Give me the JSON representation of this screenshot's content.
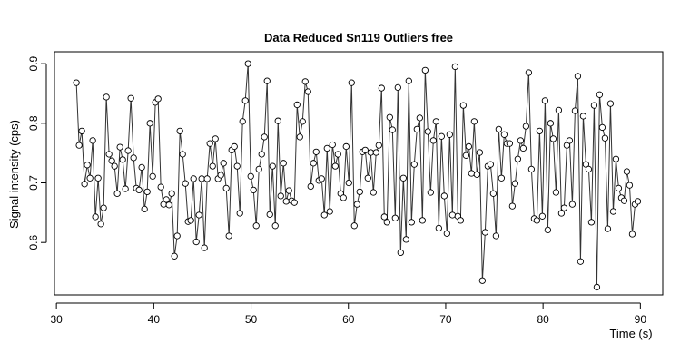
{
  "chart_data": {
    "type": "line",
    "markers": true,
    "title": "Data Reduced Sn119 Outliers free",
    "xlabel": "Time (s)",
    "ylabel": "Signal intensity (cps)",
    "color": "#333333",
    "xlim": [
      29.8,
      92.3
    ],
    "ylim": [
      0.512,
      0.92
    ],
    "xticks": [
      30,
      40,
      50,
      60,
      70,
      80,
      90
    ],
    "yticks": [
      0.6,
      0.7,
      0.8,
      0.9
    ],
    "x": [
      32.05,
      32.33,
      32.61,
      32.89,
      33.17,
      33.45,
      33.73,
      34.01,
      34.29,
      34.57,
      34.85,
      35.13,
      35.41,
      35.69,
      35.97,
      36.25,
      36.53,
      36.81,
      37.09,
      37.37,
      37.65,
      37.93,
      38.21,
      38.49,
      38.77,
      39.05,
      39.33,
      39.61,
      39.89,
      40.17,
      40.45,
      40.73,
      41.01,
      41.29,
      41.57,
      41.85,
      42.13,
      42.41,
      42.69,
      42.97,
      43.25,
      43.53,
      43.81,
      44.09,
      44.37,
      44.65,
      44.93,
      45.21,
      45.49,
      45.77,
      46.05,
      46.33,
      46.61,
      46.89,
      47.17,
      47.45,
      47.73,
      48.01,
      48.29,
      48.57,
      48.85,
      49.13,
      49.41,
      49.69,
      49.97,
      50.25,
      50.53,
      50.81,
      51.09,
      51.37,
      51.65,
      51.93,
      52.21,
      52.49,
      52.77,
      53.05,
      53.33,
      53.61,
      53.89,
      54.17,
      54.45,
      54.73,
      55.01,
      55.29,
      55.57,
      55.85,
      56.13,
      56.41,
      56.69,
      56.97,
      57.25,
      57.53,
      57.81,
      58.09,
      58.37,
      58.65,
      58.93,
      59.21,
      59.49,
      59.77,
      60.05,
      60.33,
      60.61,
      60.89,
      61.17,
      61.45,
      61.73,
      62.01,
      62.29,
      62.57,
      62.85,
      63.13,
      63.41,
      63.69,
      63.97,
      64.25,
      64.53,
      64.81,
      65.09,
      65.37,
      65.65,
      65.93,
      66.21,
      66.49,
      66.77,
      67.05,
      67.33,
      67.61,
      67.89,
      68.17,
      68.45,
      68.73,
      69.01,
      69.29,
      69.57,
      69.85,
      70.13,
      70.41,
      70.69,
      70.97,
      71.25,
      71.53,
      71.81,
      72.09,
      72.37,
      72.65,
      72.93,
      73.21,
      73.49,
      73.77,
      74.05,
      74.33,
      74.61,
      74.89,
      75.17,
      75.45,
      75.73,
      76.01,
      76.29,
      76.57,
      76.85,
      77.13,
      77.41,
      77.69,
      77.97,
      78.25,
      78.53,
      78.81,
      79.09,
      79.37,
      79.65,
      79.93,
      80.21,
      80.49,
      80.77,
      81.05,
      81.33,
      81.61,
      81.89,
      82.17,
      82.45,
      82.73,
      83.01,
      83.29,
      83.57,
      83.85,
      84.13,
      84.41,
      84.69,
      84.97,
      85.25,
      85.53,
      85.81,
      86.09,
      86.37,
      86.65,
      86.93,
      87.21,
      87.49,
      87.77,
      88.05,
      88.33,
      88.61,
      88.89,
      89.17,
      89.45,
      89.73
    ],
    "values": [
      0.868,
      0.763,
      0.787,
      0.698,
      0.73,
      0.708,
      0.771,
      0.643,
      0.708,
      0.631,
      0.658,
      0.844,
      0.748,
      0.737,
      0.728,
      0.682,
      0.76,
      0.739,
      0.69,
      0.754,
      0.842,
      0.742,
      0.691,
      0.688,
      0.726,
      0.656,
      0.685,
      0.8,
      0.711,
      0.835,
      0.841,
      0.693,
      0.664,
      0.672,
      0.663,
      0.682,
      0.577,
      0.611,
      0.787,
      0.748,
      0.699,
      0.635,
      0.637,
      0.707,
      0.601,
      0.646,
      0.707,
      0.591,
      0.707,
      0.766,
      0.728,
      0.774,
      0.707,
      0.713,
      0.733,
      0.691,
      0.611,
      0.755,
      0.761,
      0.728,
      0.649,
      0.803,
      0.838,
      0.9,
      0.711,
      0.688,
      0.628,
      0.723,
      0.748,
      0.777,
      0.871,
      0.647,
      0.728,
      0.628,
      0.804,
      0.678,
      0.733,
      0.669,
      0.687,
      0.67,
      0.667,
      0.831,
      0.777,
      0.803,
      0.87,
      0.853,
      0.694,
      0.733,
      0.752,
      0.704,
      0.707,
      0.646,
      0.758,
      0.652,
      0.764,
      0.728,
      0.748,
      0.682,
      0.675,
      0.761,
      0.7,
      0.868,
      0.628,
      0.664,
      0.685,
      0.752,
      0.755,
      0.708,
      0.751,
      0.684,
      0.751,
      0.763,
      0.859,
      0.643,
      0.634,
      0.81,
      0.789,
      0.641,
      0.86,
      0.583,
      0.708,
      0.605,
      0.871,
      0.634,
      0.731,
      0.79,
      0.809,
      0.637,
      0.889,
      0.786,
      0.684,
      0.771,
      0.803,
      0.624,
      0.778,
      0.678,
      0.615,
      0.781,
      0.646,
      0.895,
      0.644,
      0.637,
      0.83,
      0.746,
      0.761,
      0.716,
      0.803,
      0.714,
      0.751,
      0.536,
      0.617,
      0.728,
      0.731,
      0.682,
      0.611,
      0.79,
      0.708,
      0.781,
      0.766,
      0.766,
      0.661,
      0.699,
      0.74,
      0.771,
      0.758,
      0.795,
      0.885,
      0.723,
      0.64,
      0.637,
      0.787,
      0.644,
      0.838,
      0.621,
      0.8,
      0.774,
      0.684,
      0.822,
      0.649,
      0.658,
      0.763,
      0.771,
      0.664,
      0.821,
      0.879,
      0.568,
      0.812,
      0.731,
      0.723,
      0.634,
      0.83,
      0.525,
      0.848,
      0.793,
      0.775,
      0.623,
      0.833,
      0.652,
      0.74,
      0.691,
      0.675,
      0.67,
      0.719,
      0.696,
      0.614,
      0.664,
      0.669
    ]
  }
}
